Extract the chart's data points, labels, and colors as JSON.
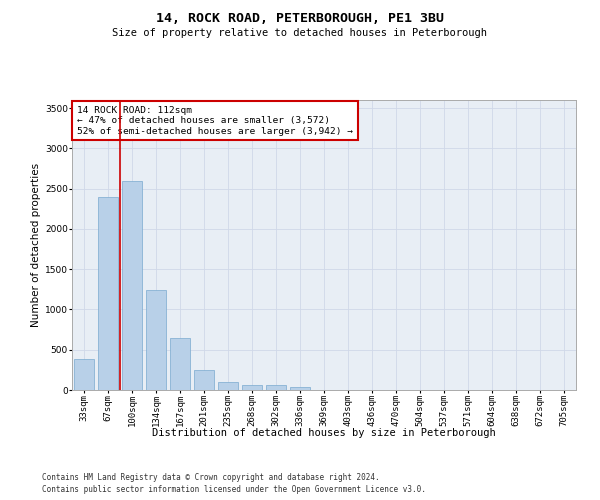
{
  "title": "14, ROCK ROAD, PETERBOROUGH, PE1 3BU",
  "subtitle": "Size of property relative to detached houses in Peterborough",
  "xlabel": "Distribution of detached houses by size in Peterborough",
  "ylabel": "Number of detached properties",
  "footnote1": "Contains HM Land Registry data © Crown copyright and database right 2024.",
  "footnote2": "Contains public sector information licensed under the Open Government Licence v3.0.",
  "categories": [
    "33sqm",
    "67sqm",
    "100sqm",
    "134sqm",
    "167sqm",
    "201sqm",
    "235sqm",
    "268sqm",
    "302sqm",
    "336sqm",
    "369sqm",
    "403sqm",
    "436sqm",
    "470sqm",
    "504sqm",
    "537sqm",
    "571sqm",
    "604sqm",
    "638sqm",
    "672sqm",
    "705sqm"
  ],
  "values": [
    380,
    2400,
    2600,
    1240,
    640,
    250,
    95,
    65,
    58,
    40,
    0,
    0,
    0,
    0,
    0,
    0,
    0,
    0,
    0,
    0,
    0
  ],
  "bar_color": "#b8d0e8",
  "bar_edge_color": "#7aaacf",
  "grid_color": "#d0d8e8",
  "bg_color": "#e8eef5",
  "vline_color": "#cc0000",
  "annotation_text": "14 ROCK ROAD: 112sqm\n← 47% of detached houses are smaller (3,572)\n52% of semi-detached houses are larger (3,942) →",
  "annotation_box_color": "white",
  "annotation_box_edge": "#cc0000",
  "ylim": [
    0,
    3600
  ],
  "yticks": [
    0,
    500,
    1000,
    1500,
    2000,
    2500,
    3000,
    3500
  ],
  "title_fontsize": 9.5,
  "subtitle_fontsize": 7.5,
  "xlabel_fontsize": 7.5,
  "ylabel_fontsize": 7.5,
  "tick_fontsize": 6.5,
  "annot_fontsize": 6.8,
  "footnote_fontsize": 5.5
}
